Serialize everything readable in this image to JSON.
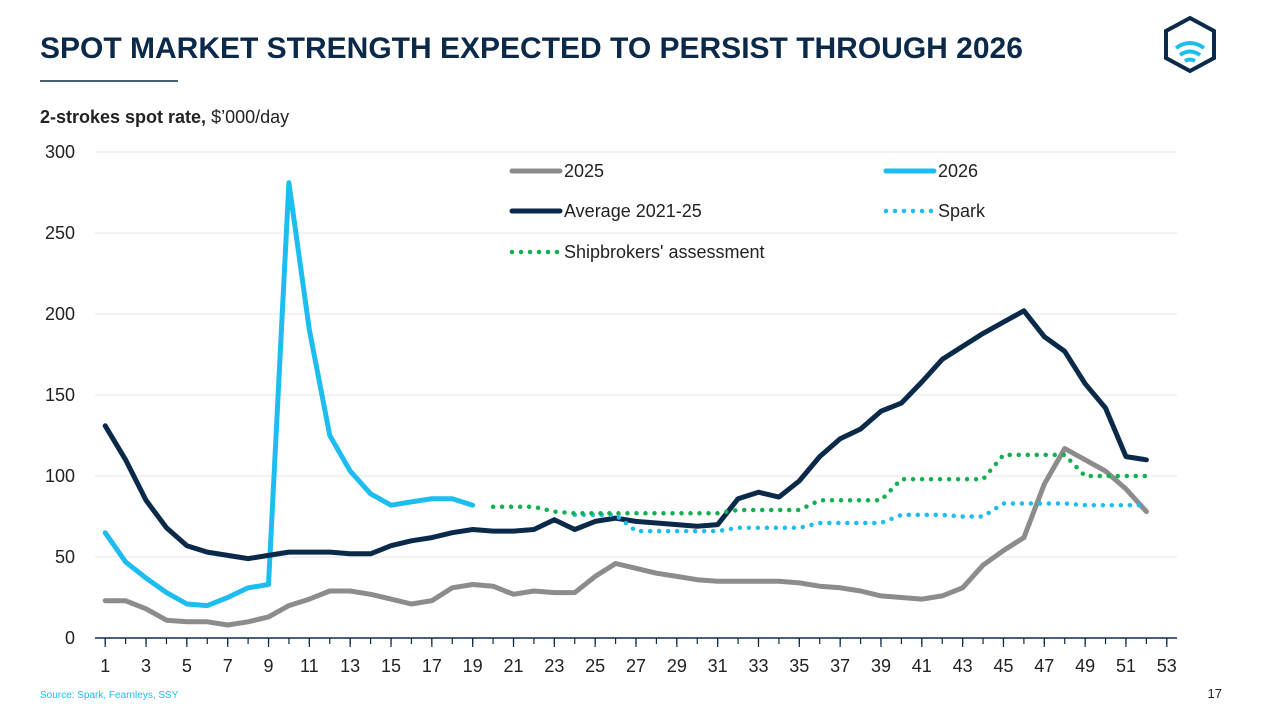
{
  "chart_data": {
    "type": "line",
    "title": "SPOT MARKET STRENGTH EXPECTED TO PERSIST THROUGH 2026",
    "y_label_bold": "2-strokes spot rate,",
    "y_label_unit": "$’000/day",
    "source": "Source: Spark, Fearnleys, SSY",
    "page_number": "17",
    "x": [
      1,
      2,
      3,
      4,
      5,
      6,
      7,
      8,
      9,
      10,
      11,
      12,
      13,
      14,
      15,
      16,
      17,
      18,
      19,
      20,
      21,
      22,
      23,
      24,
      25,
      26,
      27,
      28,
      29,
      30,
      31,
      32,
      33,
      34,
      35,
      36,
      37,
      38,
      39,
      40,
      41,
      42,
      43,
      44,
      45,
      46,
      47,
      48,
      49,
      50,
      51,
      52
    ],
    "xlim": [
      0.5,
      53.5
    ],
    "xticks": [
      1,
      3,
      5,
      7,
      9,
      11,
      13,
      15,
      17,
      19,
      21,
      23,
      25,
      27,
      29,
      31,
      33,
      35,
      37,
      39,
      41,
      43,
      45,
      47,
      49,
      51,
      53
    ],
    "ylim": [
      0,
      300
    ],
    "yticks": [
      0,
      50,
      100,
      150,
      200,
      250,
      300
    ],
    "grid": true,
    "series": [
      {
        "name": "2025",
        "color": "#8c8c8c",
        "style": "solid",
        "values": [
          23,
          23,
          18,
          11,
          10,
          10,
          8,
          10,
          13,
          20,
          24,
          29,
          29,
          27,
          24,
          21,
          23,
          31,
          33,
          32,
          27,
          29,
          28,
          28,
          38,
          46,
          43,
          40,
          38,
          36,
          35,
          35,
          35,
          35,
          34,
          32,
          31,
          29,
          26,
          25,
          24,
          26,
          31,
          45,
          54,
          62,
          95,
          117,
          110,
          103,
          92,
          78
        ]
      },
      {
        "name": "2026",
        "color": "#1dbdf0",
        "style": "solid",
        "values": [
          65,
          47,
          37,
          28,
          21,
          20,
          25,
          31,
          33,
          281,
          190,
          125,
          103,
          89,
          82,
          84,
          86,
          86,
          82,
          null,
          null,
          null,
          null,
          null,
          null,
          null,
          null,
          null,
          null,
          null,
          null,
          null,
          null,
          null,
          null,
          null,
          null,
          null,
          null,
          null,
          null,
          null,
          null,
          null,
          null,
          null,
          null,
          null,
          null,
          null,
          null,
          null
        ]
      },
      {
        "name": "Average 2021-25",
        "color": "#0b2a4a",
        "style": "solid",
        "values": [
          131,
          110,
          85,
          68,
          57,
          53,
          51,
          49,
          51,
          53,
          53,
          53,
          52,
          52,
          57,
          60,
          62,
          65,
          67,
          66,
          66,
          67,
          73,
          67,
          72,
          74,
          72,
          71,
          70,
          69,
          70,
          86,
          90,
          87,
          97,
          112,
          123,
          129,
          140,
          145,
          158,
          172,
          180,
          188,
          195,
          202,
          186,
          177,
          157,
          142,
          112,
          110
        ]
      },
      {
        "name": "Spark",
        "color": "#1dbdf0",
        "style": "dotted",
        "values": [
          null,
          null,
          null,
          null,
          null,
          null,
          null,
          null,
          null,
          null,
          null,
          null,
          null,
          null,
          null,
          null,
          null,
          null,
          null,
          null,
          null,
          null,
          null,
          76,
          76,
          76,
          66,
          66,
          66,
          66,
          66,
          68,
          68,
          68,
          68,
          71,
          71,
          71,
          71,
          76,
          76,
          76,
          75,
          75,
          83,
          83,
          83,
          83,
          82,
          82,
          82,
          82
        ]
      },
      {
        "name": "Shipbrokers' assessment",
        "color": "#10b050",
        "style": "dotted",
        "values": [
          null,
          null,
          null,
          null,
          null,
          null,
          null,
          null,
          null,
          null,
          null,
          null,
          null,
          null,
          null,
          null,
          null,
          null,
          null,
          81,
          81,
          81,
          78,
          77,
          77,
          77,
          77,
          77,
          77,
          77,
          77,
          79,
          79,
          79,
          79,
          85,
          85,
          85,
          85,
          98,
          98,
          98,
          98,
          98,
          113,
          113,
          113,
          113,
          100,
          100,
          100,
          100
        ]
      }
    ]
  }
}
